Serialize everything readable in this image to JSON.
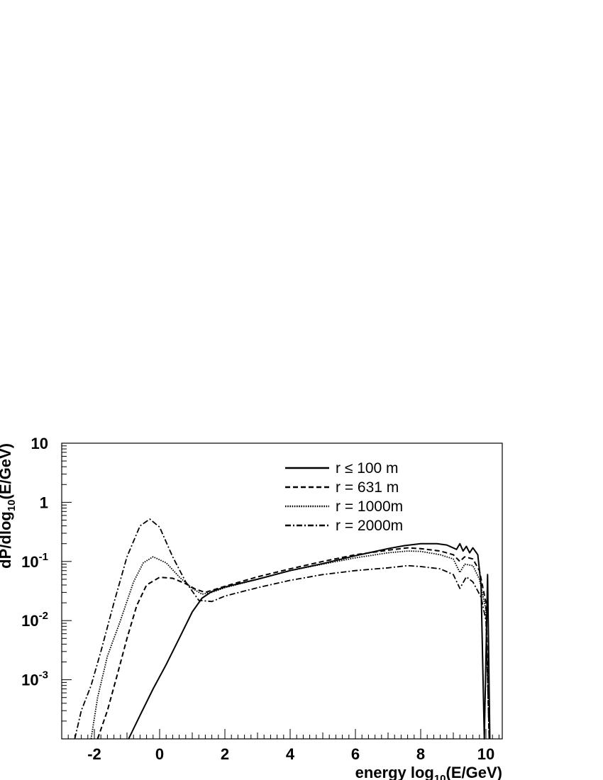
{
  "chart_data": {
    "type": "line",
    "xlabel_main": "energy log",
    "xlabel_sub": "10",
    "xlabel_tail": "(E/GeV)",
    "ylabel_main": "dP/dlog",
    "ylabel_sub": "10",
    "ylabel_tail": "(E/GeV)",
    "xlim": [
      -3,
      10.5
    ],
    "ylim": [
      0.0001,
      10
    ],
    "y_scale": "log",
    "x_ticks": [
      -2,
      0,
      2,
      4,
      6,
      8,
      10
    ],
    "x_tick_labels": [
      "-2",
      "0",
      "2",
      "4",
      "6",
      "8",
      "10"
    ],
    "y_tick_labels": [
      {
        "value": 10,
        "base": "10",
        "exp": ""
      },
      {
        "value": 1,
        "base": "1",
        "exp": ""
      },
      {
        "value": 0.1,
        "base": "10",
        "exp": "-1"
      },
      {
        "value": 0.01,
        "base": "10",
        "exp": "-2"
      },
      {
        "value": 0.001,
        "base": "10",
        "exp": "-3"
      }
    ],
    "legend_position": "top-right",
    "series": [
      {
        "name": "r ≤ 100 m",
        "style": "solid",
        "points": [
          [
            -0.95,
            0.0001
          ],
          [
            -0.6,
            0.00025
          ],
          [
            -0.2,
            0.0007
          ],
          [
            0.2,
            0.0018
          ],
          [
            0.6,
            0.005
          ],
          [
            1.0,
            0.014
          ],
          [
            1.3,
            0.024
          ],
          [
            1.6,
            0.031
          ],
          [
            2,
            0.037
          ],
          [
            3,
            0.05
          ],
          [
            4,
            0.07
          ],
          [
            5,
            0.092
          ],
          [
            6,
            0.125
          ],
          [
            7,
            0.165
          ],
          [
            7.5,
            0.185
          ],
          [
            8,
            0.2
          ],
          [
            8.5,
            0.2
          ],
          [
            8.8,
            0.19
          ],
          [
            9.1,
            0.16
          ],
          [
            9.2,
            0.2
          ],
          [
            9.3,
            0.15
          ],
          [
            9.4,
            0.18
          ],
          [
            9.5,
            0.14
          ],
          [
            9.6,
            0.17
          ],
          [
            9.75,
            0.13
          ],
          [
            9.85,
            0.04
          ],
          [
            9.95,
            0.0001
          ],
          [
            10.05,
            0.06
          ],
          [
            10.12,
            0.0001
          ]
        ]
      },
      {
        "name": "r = 631 m",
        "style": "dashed",
        "points": [
          [
            -1.9,
            0.0001
          ],
          [
            -1.6,
            0.0003
          ],
          [
            -1.3,
            0.0012
          ],
          [
            -1.0,
            0.005
          ],
          [
            -0.7,
            0.018
          ],
          [
            -0.4,
            0.04
          ],
          [
            0,
            0.054
          ],
          [
            0.4,
            0.052
          ],
          [
            0.8,
            0.042
          ],
          [
            1.1,
            0.034
          ],
          [
            1.4,
            0.03
          ],
          [
            2,
            0.038
          ],
          [
            3,
            0.055
          ],
          [
            4,
            0.075
          ],
          [
            5,
            0.1
          ],
          [
            6,
            0.13
          ],
          [
            7,
            0.155
          ],
          [
            7.6,
            0.17
          ],
          [
            8,
            0.165
          ],
          [
            8.6,
            0.15
          ],
          [
            9.0,
            0.13
          ],
          [
            9.2,
            0.1
          ],
          [
            9.35,
            0.12
          ],
          [
            9.6,
            0.11
          ],
          [
            9.8,
            0.07
          ],
          [
            10.0,
            0.02
          ],
          [
            10.1,
            0.0001
          ]
        ]
      },
      {
        "name": "r = 1000m",
        "style": "dotted",
        "points": [
          [
            -2.1,
            0.0001
          ],
          [
            -1.9,
            0.0005
          ],
          [
            -1.6,
            0.0025
          ],
          [
            -1.2,
            0.01
          ],
          [
            -0.8,
            0.045
          ],
          [
            -0.5,
            0.095
          ],
          [
            -0.2,
            0.12
          ],
          [
            0.2,
            0.095
          ],
          [
            0.6,
            0.055
          ],
          [
            1.0,
            0.035
          ],
          [
            1.3,
            0.028
          ],
          [
            1.6,
            0.03
          ],
          [
            2,
            0.036
          ],
          [
            3,
            0.05
          ],
          [
            4,
            0.07
          ],
          [
            5,
            0.09
          ],
          [
            6,
            0.115
          ],
          [
            7,
            0.14
          ],
          [
            7.6,
            0.15
          ],
          [
            8,
            0.148
          ],
          [
            8.6,
            0.13
          ],
          [
            9.0,
            0.11
          ],
          [
            9.2,
            0.065
          ],
          [
            9.35,
            0.09
          ],
          [
            9.6,
            0.085
          ],
          [
            9.8,
            0.05
          ],
          [
            10.0,
            0.015
          ],
          [
            10.1,
            0.0001
          ]
        ]
      },
      {
        "name": "r = 2000m",
        "style": "dashdot",
        "points": [
          [
            -2.6,
            0.0001
          ],
          [
            -2.4,
            0.0003
          ],
          [
            -2.1,
            0.0008
          ],
          [
            -1.8,
            0.003
          ],
          [
            -1.4,
            0.02
          ],
          [
            -1.0,
            0.12
          ],
          [
            -0.6,
            0.4
          ],
          [
            -0.3,
            0.52
          ],
          [
            0,
            0.38
          ],
          [
            0.4,
            0.12
          ],
          [
            0.8,
            0.045
          ],
          [
            1.2,
            0.022
          ],
          [
            1.6,
            0.021
          ],
          [
            2,
            0.026
          ],
          [
            3,
            0.036
          ],
          [
            4,
            0.048
          ],
          [
            5,
            0.06
          ],
          [
            6,
            0.07
          ],
          [
            7,
            0.078
          ],
          [
            7.6,
            0.085
          ],
          [
            8,
            0.082
          ],
          [
            8.6,
            0.075
          ],
          [
            9.0,
            0.06
          ],
          [
            9.2,
            0.035
          ],
          [
            9.4,
            0.055
          ],
          [
            9.6,
            0.045
          ],
          [
            9.85,
            0.025
          ],
          [
            10.0,
            0.01
          ],
          [
            10.1,
            0.0001
          ]
        ]
      }
    ]
  }
}
